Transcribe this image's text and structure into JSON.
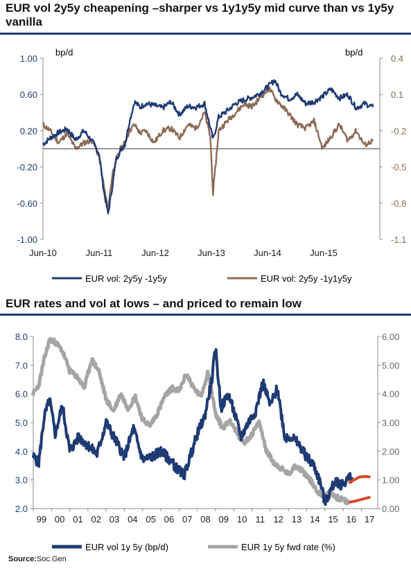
{
  "chart_data": [
    {
      "type": "line",
      "title": "EUR vol 2y5y cheapening –sharper vs 1y1y5y mid curve than vs 1y5y vanilla",
      "left_unit": "bp/d",
      "right_unit": "bp/d",
      "left_ylim": [
        -1.0,
        1.0
      ],
      "right_ylim": [
        -1.1,
        0.4
      ],
      "left_ticks": [
        "1.00",
        "0.60",
        "0.20",
        "-0.20",
        "-0.60",
        "-1.00"
      ],
      "right_ticks": [
        "0.4",
        "0.1",
        "-0.2",
        "-0.5",
        "-0.8",
        "-1.1"
      ],
      "x_ticks": [
        "Jun-10",
        "Jun-11",
        "Jun-12",
        "Jun-13",
        "Jun-14",
        "Jun-15"
      ],
      "colors": {
        "blue": "#1f3b73",
        "brown": "#8b6a55"
      },
      "series": [
        {
          "name": "EUR vol: 2y5y -1y5y",
          "axis": "left",
          "x": [
            2010.42,
            2010.55,
            2010.7,
            2010.85,
            2011.0,
            2011.15,
            2011.3,
            2011.42,
            2011.5,
            2011.58,
            2011.66,
            2011.72,
            2011.8,
            2011.88,
            2011.96,
            2012.05,
            2012.15,
            2012.25,
            2012.4,
            2012.55,
            2012.7,
            2012.85,
            2013.0,
            2013.15,
            2013.3,
            2013.45,
            2013.55,
            2013.7,
            2013.85,
            2014.0,
            2014.15,
            2014.3,
            2014.45,
            2014.55,
            2014.65,
            2014.8,
            2014.95,
            2015.1,
            2015.25,
            2015.4,
            2015.55,
            2015.7,
            2015.85,
            2016.0,
            2016.15,
            2016.3
          ],
          "y": [
            0.05,
            0.12,
            0.18,
            0.22,
            0.1,
            0.2,
            0.08,
            -0.05,
            -0.45,
            -0.72,
            -0.4,
            -0.12,
            -0.02,
            0.05,
            0.3,
            0.52,
            0.46,
            0.5,
            0.48,
            0.45,
            0.52,
            0.38,
            0.47,
            0.46,
            0.5,
            0.1,
            0.35,
            0.42,
            0.5,
            0.54,
            0.57,
            0.62,
            0.7,
            0.76,
            0.62,
            0.55,
            0.6,
            0.5,
            0.52,
            0.58,
            0.66,
            0.56,
            0.6,
            0.45,
            0.5,
            0.46
          ]
        },
        {
          "name": "EUR vol: 2y5y -1y1y5y",
          "axis": "right",
          "x": [
            2010.42,
            2010.55,
            2010.7,
            2010.85,
            2011.0,
            2011.15,
            2011.3,
            2011.42,
            2011.5,
            2011.58,
            2011.66,
            2011.72,
            2011.8,
            2011.88,
            2011.96,
            2012.05,
            2012.15,
            2012.25,
            2012.4,
            2012.55,
            2012.7,
            2012.85,
            2013.0,
            2013.15,
            2013.3,
            2013.4,
            2013.45,
            2013.55,
            2013.7,
            2013.85,
            2014.0,
            2014.15,
            2014.3,
            2014.45,
            2014.55,
            2014.65,
            2014.8,
            2014.95,
            2015.1,
            2015.25,
            2015.4,
            2015.55,
            2015.7,
            2015.85,
            2016.0,
            2016.15,
            2016.3
          ],
          "y": [
            -0.15,
            -0.2,
            -0.3,
            -0.22,
            -0.35,
            -0.3,
            -0.28,
            -0.42,
            -0.65,
            -0.85,
            -0.55,
            -0.45,
            -0.35,
            -0.3,
            -0.2,
            -0.15,
            -0.22,
            -0.2,
            -0.3,
            -0.2,
            -0.18,
            -0.26,
            -0.15,
            -0.18,
            -0.05,
            -0.25,
            -0.72,
            -0.2,
            -0.12,
            -0.05,
            0.02,
            0.0,
            0.08,
            0.15,
            0.07,
            0.02,
            -0.06,
            -0.15,
            -0.18,
            -0.12,
            -0.35,
            -0.25,
            -0.15,
            -0.28,
            -0.2,
            -0.32,
            -0.28
          ]
        }
      ]
    },
    {
      "type": "line",
      "title": "EUR rates and vol at lows – and priced to remain low",
      "left_ylim": [
        2.0,
        8.0
      ],
      "right_ylim": [
        0.0,
        6.0
      ],
      "left_ticks": [
        "8.0",
        "7.0",
        "6.0",
        "5.0",
        "4.0",
        "3.0",
        "2.0"
      ],
      "right_ticks": [
        "6.00",
        "5.00",
        "4.00",
        "3.00",
        "2.00",
        "1.00",
        "0.00"
      ],
      "x_ticks": [
        "99",
        "00",
        "01",
        "02",
        "03",
        "04",
        "05",
        "06",
        "07",
        "08",
        "09",
        "10",
        "11",
        "12",
        "13",
        "14",
        "15",
        "16",
        "17"
      ],
      "colors": {
        "blue": "#1f3b73",
        "grey": "#a5a5a5",
        "forward": "#d9482b"
      },
      "series": [
        {
          "name": "EUR vol 1y 5y  (bp/d)",
          "axis": "left",
          "x": [
            1999.0,
            1999.3,
            1999.6,
            1999.9,
            2000.2,
            2000.6,
            2001.0,
            2001.5,
            2002.0,
            2002.5,
            2003.0,
            2003.5,
            2004.0,
            2004.5,
            2005.0,
            2005.5,
            2006.0,
            2006.5,
            2007.0,
            2007.3,
            2007.6,
            2008.0,
            2008.4,
            2008.8,
            2009.0,
            2009.3,
            2009.7,
            2010.0,
            2010.4,
            2010.8,
            2011.2,
            2011.6,
            2012.0,
            2012.4,
            2012.8,
            2013.2,
            2013.6,
            2014.0,
            2014.4,
            2014.8,
            2015.0,
            2015.3,
            2015.6,
            2015.9,
            2016.2,
            2016.5
          ],
          "y": [
            3.8,
            3.6,
            5.2,
            5.8,
            4.6,
            5.6,
            4.0,
            4.5,
            4.2,
            3.9,
            5.0,
            4.4,
            3.8,
            4.8,
            3.7,
            3.8,
            4.0,
            3.7,
            3.3,
            3.2,
            3.8,
            4.6,
            5.2,
            6.5,
            7.6,
            5.5,
            6.0,
            5.4,
            4.5,
            5.0,
            5.4,
            6.4,
            5.6,
            6.2,
            4.5,
            4.5,
            4.2,
            3.8,
            3.5,
            2.8,
            2.2,
            2.6,
            3.0,
            2.8,
            3.0,
            3.1
          ]
        },
        {
          "name": "EUR 1y 5y  fwd rate (%)",
          "axis": "right",
          "x": [
            1999.0,
            1999.3,
            1999.6,
            1999.9,
            2000.2,
            2000.6,
            2001.0,
            2001.4,
            2001.8,
            2002.2,
            2002.6,
            2003.0,
            2003.4,
            2003.8,
            2004.2,
            2004.6,
            2005.0,
            2005.4,
            2005.8,
            2006.2,
            2006.6,
            2007.0,
            2007.4,
            2007.8,
            2008.2,
            2008.6,
            2009.0,
            2009.4,
            2009.8,
            2010.2,
            2010.6,
            2011.0,
            2011.4,
            2011.8,
            2012.2,
            2012.6,
            2013.0,
            2013.4,
            2013.8,
            2014.2,
            2014.6,
            2015.0,
            2015.3,
            2015.6,
            2016.0,
            2016.3
          ],
          "y": [
            4.0,
            4.3,
            5.2,
            5.9,
            5.8,
            5.5,
            4.8,
            4.6,
            4.2,
            5.2,
            4.8,
            3.8,
            3.4,
            4.0,
            3.5,
            3.9,
            3.1,
            2.9,
            3.3,
            3.9,
            4.2,
            4.1,
            4.7,
            4.2,
            3.9,
            4.8,
            3.3,
            2.8,
            3.1,
            2.6,
            2.3,
            2.6,
            3.0,
            2.0,
            1.6,
            1.4,
            1.2,
            1.5,
            1.3,
            1.0,
            0.6,
            0.4,
            0.6,
            0.4,
            0.3,
            0.2
          ]
        },
        {
          "name": "",
          "axis": "left",
          "x": [
            2016.3,
            2016.6,
            2016.9,
            2017.2,
            2017.5
          ],
          "y": [
            2.9,
            3.0,
            3.1,
            3.12,
            3.1
          ]
        },
        {
          "name": "",
          "axis": "right",
          "x": [
            2016.3,
            2016.6,
            2016.9,
            2017.2,
            2017.5
          ],
          "y": [
            0.22,
            0.25,
            0.3,
            0.35,
            0.4
          ]
        }
      ]
    }
  ],
  "source": {
    "label": "Source:",
    "value": "Soc.Gen"
  }
}
